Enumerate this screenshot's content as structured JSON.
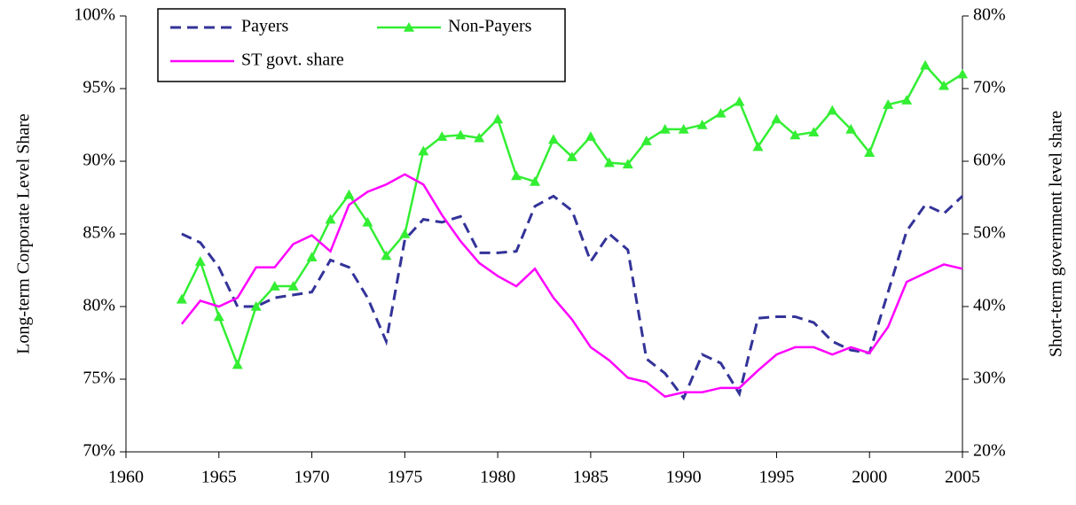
{
  "chart_data": {
    "type": "line",
    "y_label": "Long-term Corporate Level Share",
    "y2_label": "Short-term government  level  share",
    "x": [
      1963,
      1964,
      1965,
      1966,
      1967,
      1968,
      1969,
      1970,
      1971,
      1972,
      1973,
      1974,
      1975,
      1976,
      1977,
      1978,
      1979,
      1980,
      1981,
      1982,
      1983,
      1984,
      1985,
      1986,
      1987,
      1988,
      1989,
      1990,
      1991,
      1992,
      1993,
      1994,
      1995,
      1996,
      1997,
      1998,
      1999,
      2000,
      2001,
      2002,
      2003,
      2004,
      2005
    ],
    "xlim": [
      1960,
      2005
    ],
    "xticks": [
      1960,
      1965,
      1970,
      1975,
      1980,
      1985,
      1990,
      1995,
      2000,
      2005
    ],
    "ylim": [
      70,
      100
    ],
    "yticks": [
      {
        "value": 70,
        "label": "70%"
      },
      {
        "value": 75,
        "label": "75%"
      },
      {
        "value": 80,
        "label": "80%"
      },
      {
        "value": 85,
        "label": "85%"
      },
      {
        "value": 90,
        "label": "90%"
      },
      {
        "value": 95,
        "label": "95%"
      },
      {
        "value": 100,
        "label": "100%"
      }
    ],
    "y2lim": [
      20,
      80
    ],
    "y2ticks": [
      {
        "value": 20,
        "label": "20%"
      },
      {
        "value": 30,
        "label": "30%"
      },
      {
        "value": 40,
        "label": "40%"
      },
      {
        "value": 50,
        "label": "50%"
      },
      {
        "value": 60,
        "label": "60%"
      },
      {
        "value": 70,
        "label": "70%"
      },
      {
        "value": 80,
        "label": "80%"
      }
    ],
    "legend": "upper left",
    "series": [
      {
        "name": "Payers",
        "color": "#333399",
        "line_style": "dashed",
        "values": [
          85.0,
          84.4,
          82.7,
          80.0,
          80.0,
          80.6,
          80.8,
          81.0,
          83.2,
          82.7,
          80.6,
          77.6,
          84.6,
          86.0,
          85.8,
          86.2,
          83.7,
          83.7,
          83.8,
          86.9,
          87.6,
          86.6,
          83.1,
          85.0,
          83.9,
          76.4,
          75.4,
          73.7,
          76.7,
          76.1,
          74.0,
          79.2,
          79.3,
          79.3,
          78.9,
          77.6,
          77.0,
          76.8,
          81.0,
          85.2,
          87.0,
          86.4,
          87.6
        ]
      },
      {
        "name": "Non-Payers",
        "color": "#33ee33",
        "line_style": "solid",
        "marker": "triangle",
        "values": [
          80.5,
          83.1,
          79.3,
          76.0,
          80.0,
          81.4,
          81.4,
          83.4,
          86.0,
          87.7,
          85.8,
          83.5,
          85.0,
          90.7,
          91.7,
          91.8,
          91.6,
          92.9,
          89.0,
          88.6,
          91.5,
          90.3,
          91.7,
          89.9,
          89.8,
          91.4,
          92.2,
          92.2,
          92.5,
          93.3,
          94.1,
          91.0,
          92.9,
          91.8,
          92.0,
          93.5,
          92.2,
          90.6,
          93.9,
          94.2,
          96.6,
          95.2,
          96.0
        ]
      },
      {
        "name": "ST govt. share",
        "color": "#ff00ff",
        "line_style": "solid",
        "axis": "y2",
        "values": [
          37.6,
          40.8,
          40.0,
          41.2,
          45.4,
          45.4,
          48.6,
          49.8,
          47.6,
          54.0,
          55.8,
          56.8,
          58.2,
          56.8,
          52.6,
          49.0,
          46.0,
          44.2,
          42.8,
          45.2,
          41.2,
          38.2,
          34.4,
          32.6,
          30.2,
          29.6,
          27.6,
          28.2,
          28.2,
          28.8,
          28.8,
          31.2,
          33.4,
          34.4,
          34.4,
          33.4,
          34.4,
          33.6,
          37.2,
          43.4,
          44.6,
          45.8,
          45.2
        ]
      }
    ]
  }
}
